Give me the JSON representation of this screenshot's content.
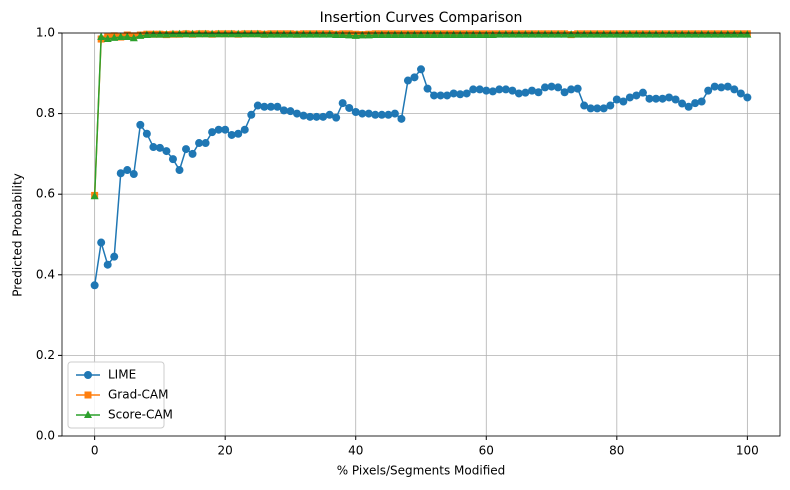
{
  "chart_data": {
    "type": "line",
    "title": "Insertion Curves Comparison",
    "x_label": "% Pixels/Segments Modified",
    "y_label": "Predicted Probability",
    "x": [
      0,
      1,
      2,
      3,
      4,
      5,
      6,
      7,
      8,
      9,
      10,
      11,
      12,
      13,
      14,
      15,
      16,
      17,
      18,
      19,
      20,
      21,
      22,
      23,
      24,
      25,
      26,
      27,
      28,
      29,
      30,
      31,
      32,
      33,
      34,
      35,
      36,
      37,
      38,
      39,
      40,
      41,
      42,
      43,
      44,
      45,
      46,
      47,
      48,
      49,
      50,
      51,
      52,
      53,
      54,
      55,
      56,
      57,
      58,
      59,
      60,
      61,
      62,
      63,
      64,
      65,
      66,
      67,
      68,
      69,
      70,
      71,
      72,
      73,
      74,
      75,
      76,
      77,
      78,
      79,
      80,
      81,
      82,
      83,
      84,
      85,
      86,
      87,
      88,
      89,
      90,
      91,
      92,
      93,
      94,
      95,
      96,
      97,
      98,
      99,
      100
    ],
    "series": [
      {
        "name": "LIME",
        "color": "#1f77b4",
        "marker": "circle",
        "values": [
          0.374,
          0.48,
          0.425,
          0.445,
          0.652,
          0.66,
          0.65,
          0.772,
          0.75,
          0.717,
          0.715,
          0.707,
          0.687,
          0.66,
          0.712,
          0.7,
          0.727,
          0.727,
          0.754,
          0.76,
          0.76,
          0.747,
          0.75,
          0.76,
          0.797,
          0.82,
          0.817,
          0.817,
          0.817,
          0.808,
          0.806,
          0.8,
          0.795,
          0.792,
          0.792,
          0.792,
          0.797,
          0.79,
          0.826,
          0.814,
          0.804,
          0.8,
          0.8,
          0.797,
          0.797,
          0.797,
          0.8,
          0.787,
          0.882,
          0.89,
          0.91,
          0.862,
          0.845,
          0.845,
          0.845,
          0.85,
          0.848,
          0.85,
          0.86,
          0.86,
          0.857,
          0.855,
          0.86,
          0.86,
          0.857,
          0.85,
          0.852,
          0.857,
          0.853,
          0.865,
          0.867,
          0.865,
          0.853,
          0.86,
          0.862,
          0.82,
          0.813,
          0.813,
          0.813,
          0.82,
          0.835,
          0.83,
          0.84,
          0.845,
          0.852,
          0.837,
          0.837,
          0.837,
          0.84,
          0.835,
          0.825,
          0.817,
          0.826,
          0.83,
          0.857,
          0.867,
          0.865,
          0.867,
          0.86,
          0.85,
          0.84
        ]
      },
      {
        "name": "Grad-CAM",
        "color": "#ff7f0e",
        "marker": "square",
        "values": [
          0.597,
          0.985,
          0.99,
          0.993,
          0.99,
          0.995,
          0.993,
          0.995,
          0.997,
          0.997,
          0.997,
          0.996,
          0.997,
          0.997,
          0.998,
          0.997,
          0.998,
          0.998,
          0.997,
          0.998,
          0.998,
          0.998,
          0.997,
          0.998,
          0.998,
          0.998,
          0.997,
          0.998,
          0.998,
          0.998,
          0.998,
          0.997,
          0.998,
          0.998,
          0.998,
          0.998,
          0.998,
          0.997,
          0.998,
          0.998,
          0.997,
          0.996,
          0.997,
          0.998,
          0.998,
          0.998,
          0.998,
          0.998,
          0.998,
          0.998,
          0.998,
          0.998,
          0.998,
          0.998,
          0.998,
          0.998,
          0.998,
          0.998,
          0.998,
          0.998,
          0.998,
          0.998,
          0.998,
          0.998,
          0.998,
          0.998,
          0.998,
          0.998,
          0.998,
          0.998,
          0.998,
          0.998,
          0.998,
          0.996,
          0.998,
          0.998,
          0.998,
          0.998,
          0.998,
          0.998,
          0.998,
          0.998,
          0.998,
          0.998,
          0.998,
          0.998,
          0.998,
          0.998,
          0.998,
          0.998,
          0.998,
          0.998,
          0.998,
          0.998,
          0.998,
          0.998,
          0.998,
          0.998,
          0.998,
          0.998,
          0.998
        ]
      },
      {
        "name": "Score-CAM",
        "color": "#2ca02c",
        "marker": "triangle",
        "values": [
          0.595,
          0.99,
          0.985,
          0.988,
          0.99,
          0.99,
          0.987,
          0.993,
          0.995,
          0.996,
          0.996,
          0.996,
          0.997,
          0.997,
          0.997,
          0.997,
          0.997,
          0.997,
          0.997,
          0.997,
          0.997,
          0.997,
          0.997,
          0.997,
          0.997,
          0.997,
          0.996,
          0.996,
          0.996,
          0.996,
          0.996,
          0.996,
          0.996,
          0.996,
          0.996,
          0.996,
          0.996,
          0.995,
          0.995,
          0.994,
          0.993,
          0.994,
          0.994,
          0.995,
          0.995,
          0.995,
          0.995,
          0.995,
          0.995,
          0.995,
          0.995,
          0.995,
          0.995,
          0.995,
          0.995,
          0.995,
          0.995,
          0.995,
          0.995,
          0.995,
          0.995,
          0.995,
          0.996,
          0.996,
          0.996,
          0.996,
          0.996,
          0.996,
          0.996,
          0.996,
          0.996,
          0.996,
          0.996,
          0.996,
          0.996,
          0.996,
          0.996,
          0.996,
          0.996,
          0.996,
          0.996,
          0.996,
          0.996,
          0.996,
          0.996,
          0.996,
          0.996,
          0.996,
          0.996,
          0.996,
          0.996,
          0.996,
          0.996,
          0.996,
          0.996,
          0.996,
          0.996,
          0.996,
          0.996,
          0.996,
          0.996
        ]
      }
    ],
    "xlim": [
      -5,
      105
    ],
    "xticks": [
      0,
      20,
      40,
      60,
      80,
      100
    ],
    "ylim": [
      0,
      1
    ],
    "yticks": [
      {
        "value": 0,
        "label": "0.0"
      },
      0.2,
      0.4,
      0.6,
      0.8,
      {
        "value": 1,
        "label": "1.0"
      }
    ],
    "grid": true,
    "legend": "lower left"
  }
}
